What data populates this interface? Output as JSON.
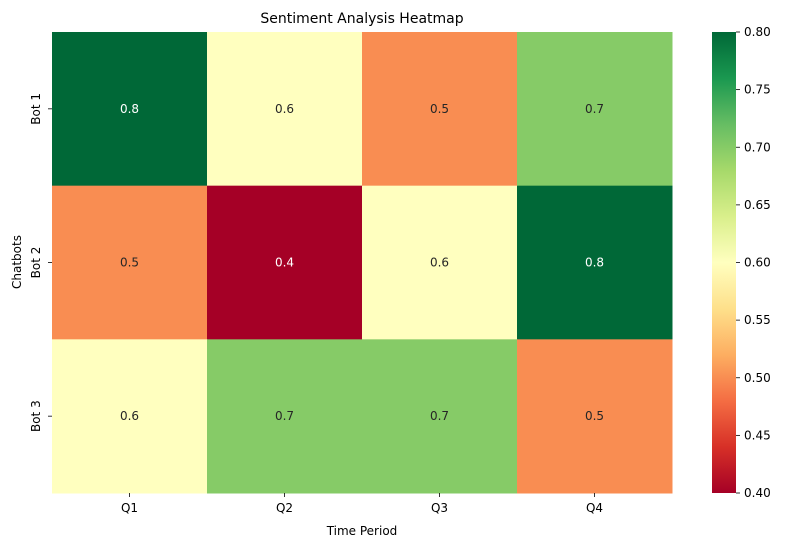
{
  "chart_data": {
    "type": "heatmap",
    "title": "Sentiment Analysis Heatmap",
    "xlabel": "Time Period",
    "ylabel": "Chatbots",
    "x_categories": [
      "Q1",
      "Q2",
      "Q3",
      "Q4"
    ],
    "y_categories": [
      "Bot 1",
      "Bot 2",
      "Bot 3"
    ],
    "values": [
      [
        0.8,
        0.6,
        0.5,
        0.7
      ],
      [
        0.5,
        0.4,
        0.6,
        0.8
      ],
      [
        0.6,
        0.7,
        0.7,
        0.5
      ]
    ],
    "cell_labels": [
      [
        "0.8",
        "0.6",
        "0.5",
        "0.7"
      ],
      [
        "0.5",
        "0.4",
        "0.6",
        "0.8"
      ],
      [
        "0.6",
        "0.7",
        "0.7",
        "0.5"
      ]
    ],
    "colorbar": {
      "range": [
        0.4,
        0.8
      ],
      "ticks": [
        0.4,
        0.45,
        0.5,
        0.55,
        0.6,
        0.65,
        0.7,
        0.75,
        0.8
      ],
      "tick_labels": [
        "0.40",
        "0.45",
        "0.50",
        "0.55",
        "0.60",
        "0.65",
        "0.70",
        "0.75",
        "0.80"
      ]
    },
    "colormap": "RdYlGn",
    "colors": {
      "low": "#a50026",
      "mid": "#ffffbf",
      "high": "#006837"
    },
    "grid": false,
    "legend": "colorbar-right"
  }
}
